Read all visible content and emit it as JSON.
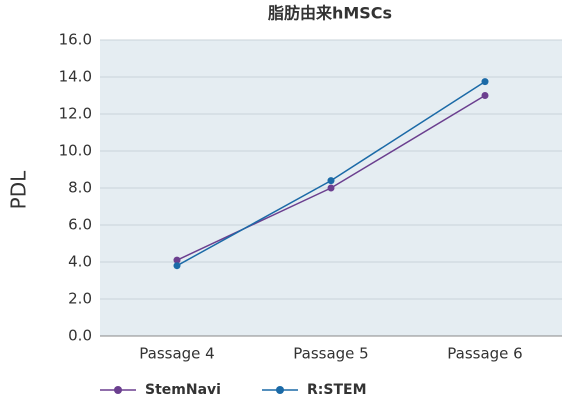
{
  "chart_data": {
    "type": "line",
    "title": "脂肪由来hMSCs",
    "y_label": "PDL",
    "categories": [
      "Passage 4",
      "Passage 5",
      "Passage 6"
    ],
    "series": [
      {
        "name": "StemNavi",
        "color": "#6b3f8f",
        "values": [
          4.1,
          8.0,
          13.0
        ]
      },
      {
        "name": "R:STEM",
        "color": "#1b6aa7",
        "values": [
          3.8,
          8.4,
          13.75
        ]
      }
    ],
    "ylim": [
      0,
      16
    ],
    "yticks": [
      {
        "value": 0,
        "label": "0.0"
      },
      {
        "value": 2,
        "label": "2.0"
      },
      {
        "value": 4,
        "label": "4.0"
      },
      {
        "value": 6,
        "label": "6.0"
      },
      {
        "value": 8,
        "label": "8.0"
      },
      {
        "value": 10,
        "label": "10.0"
      },
      {
        "value": 12,
        "label": "12.0"
      },
      {
        "value": 14,
        "label": "14.0"
      },
      {
        "value": 16,
        "label": "16.0"
      }
    ],
    "grid": true,
    "band_color": "#e5edf2",
    "legend": "bottom"
  }
}
